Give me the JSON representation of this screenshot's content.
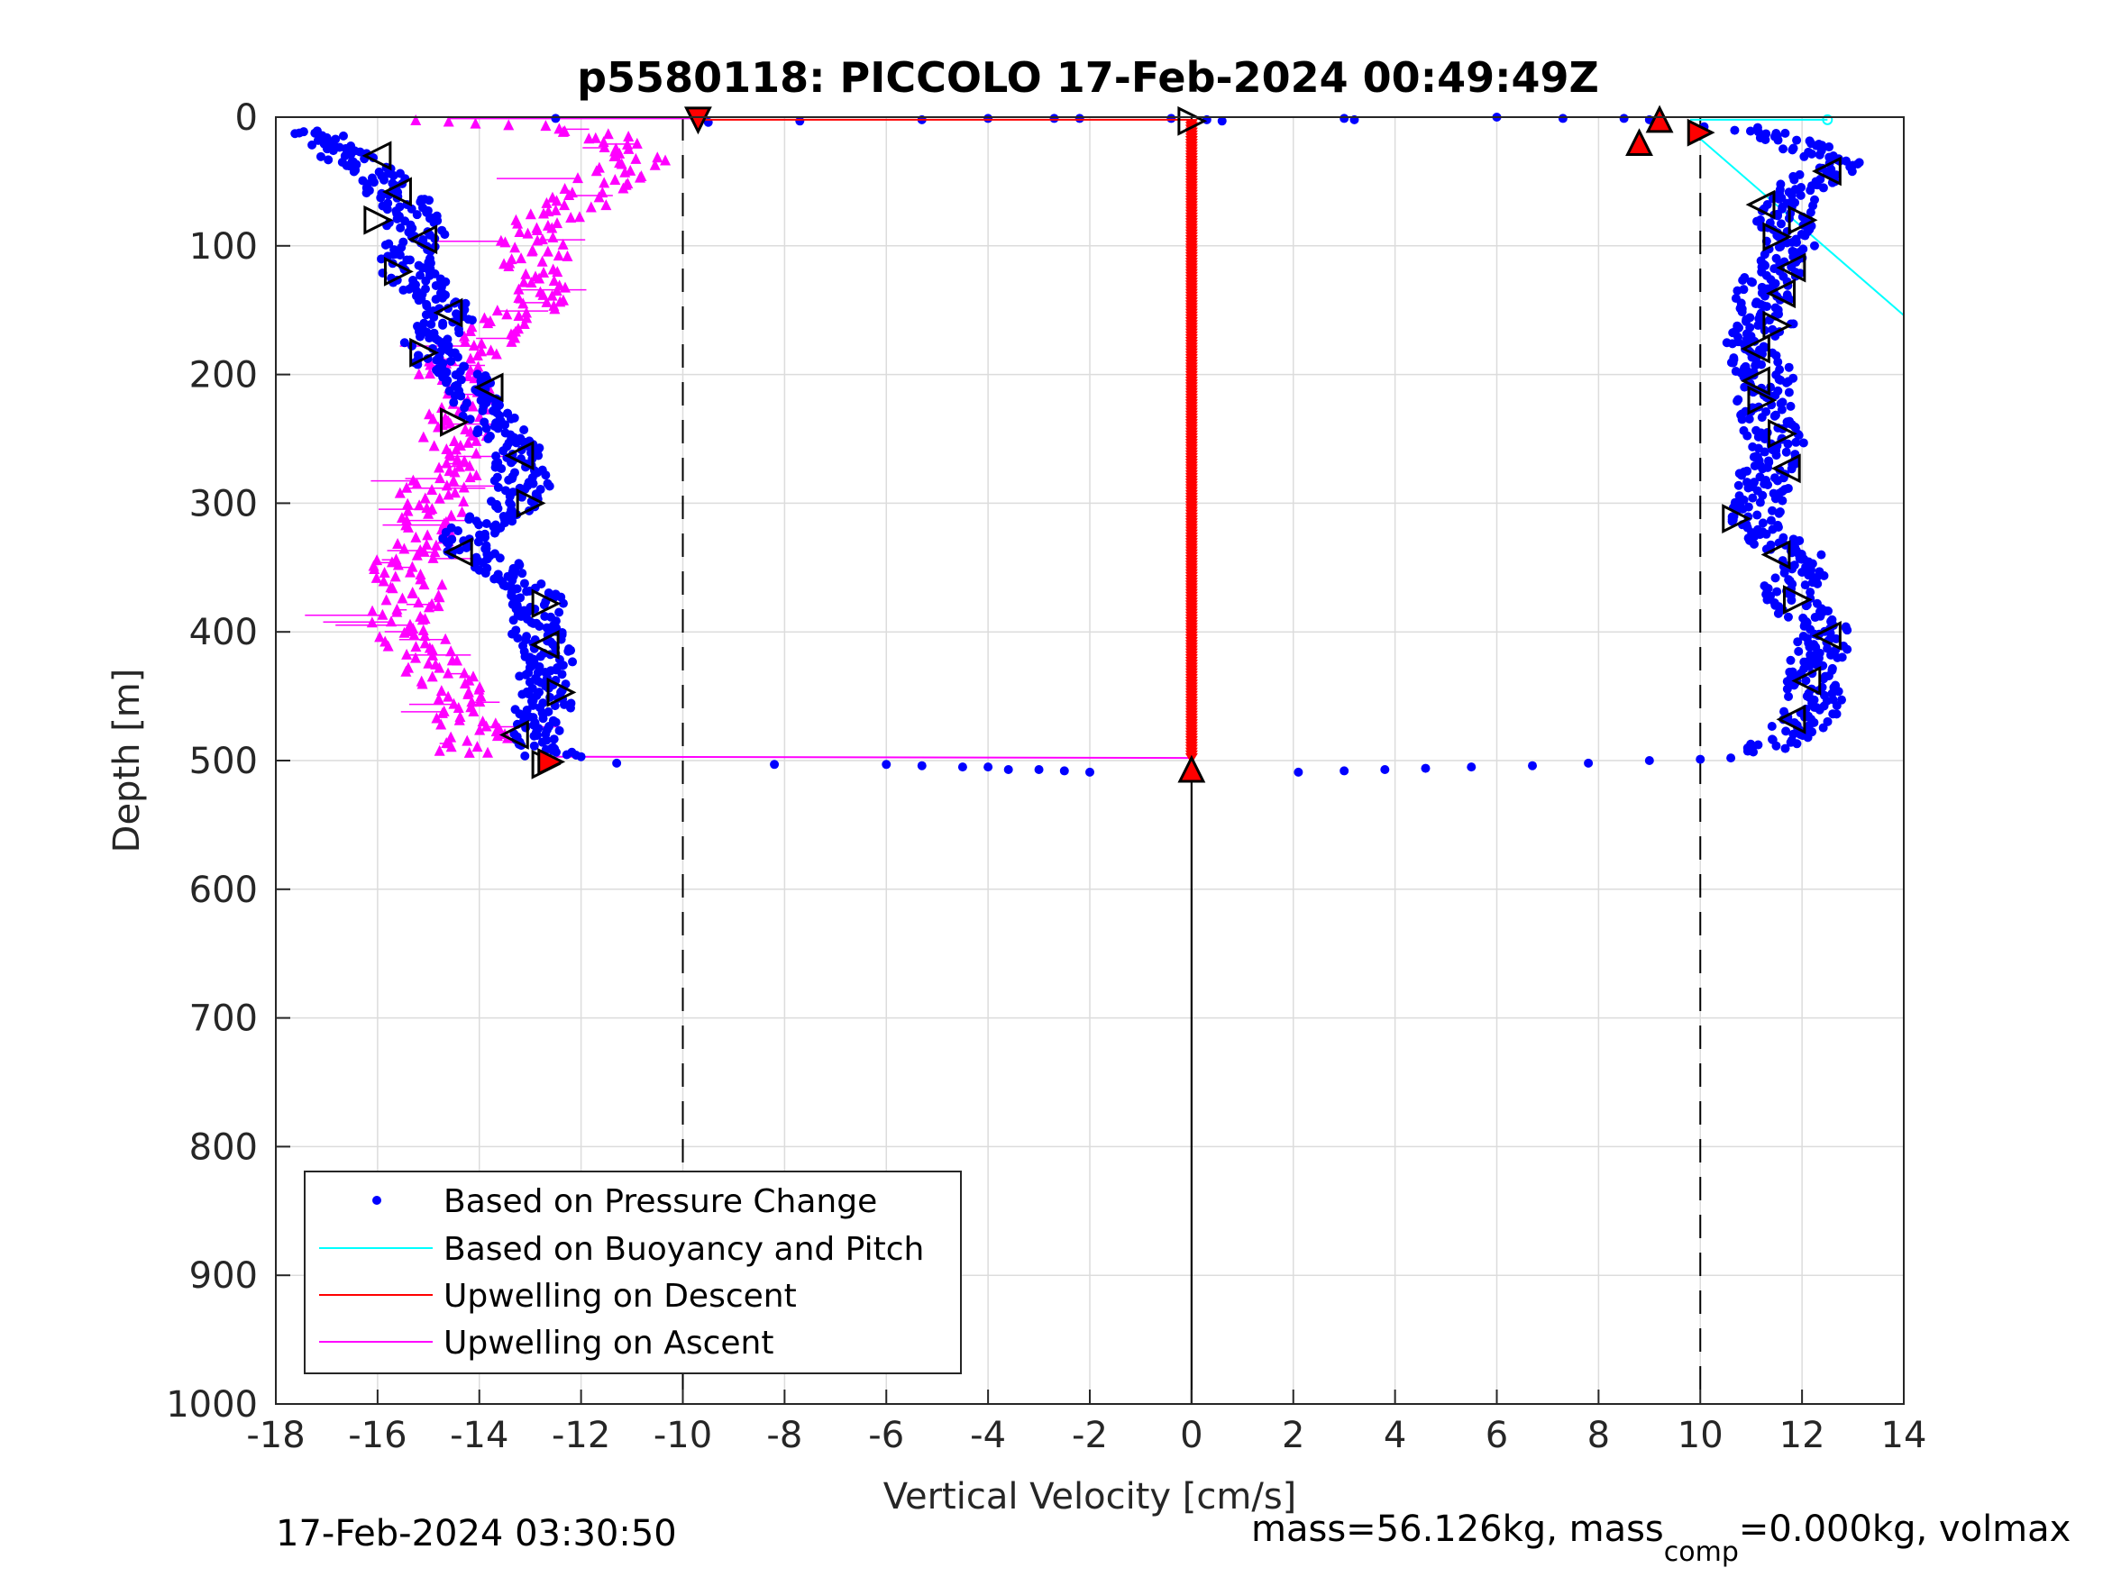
{
  "chart_data": {
    "type": "scatter",
    "title": "p5580118: PICCOLO 17-Feb-2024 00:49:49Z",
    "xlabel": "Vertical Velocity [cm/s]",
    "ylabel": "Depth [m]",
    "xlim": [
      -18,
      14
    ],
    "ylim": [
      0,
      1000
    ],
    "y_reversed": true,
    "x_ticks": [
      "-18",
      "-16",
      "-14",
      "-12",
      "-10",
      "-8",
      "-6",
      "-4",
      "-2",
      "0",
      "2",
      "4",
      "6",
      "8",
      "10",
      "12",
      "14"
    ],
    "y_ticks": [
      "0",
      "100",
      "200",
      "300",
      "400",
      "500",
      "600",
      "700",
      "800",
      "900",
      "1000"
    ],
    "grid": true,
    "legend_position": "bottom-left",
    "reference_lines": [
      {
        "kind": "vertical-dashed",
        "x": -10
      },
      {
        "kind": "vertical-dashed",
        "x": 10
      },
      {
        "kind": "vertical-solid",
        "x": 0
      }
    ],
    "series": [
      {
        "name": "Based on Pressure Change",
        "color": "#0000ff",
        "marker": "dot",
        "descent_profile": [
          [
            -17.2,
            10
          ],
          [
            -16.8,
            25
          ],
          [
            -16.2,
            40
          ],
          [
            -15.8,
            55
          ],
          [
            -15.5,
            65
          ],
          [
            -15.3,
            80
          ],
          [
            -15.2,
            95
          ],
          [
            -15.5,
            110
          ],
          [
            -15.3,
            125
          ],
          [
            -14.8,
            140
          ],
          [
            -14.6,
            155
          ],
          [
            -14.9,
            170
          ],
          [
            -15.0,
            185
          ],
          [
            -14.4,
            200
          ],
          [
            -14.2,
            215
          ],
          [
            -13.9,
            230
          ],
          [
            -13.5,
            245
          ],
          [
            -13.3,
            260
          ],
          [
            -13.2,
            275
          ],
          [
            -13.1,
            290
          ],
          [
            -13.4,
            305
          ],
          [
            -14.1,
            320
          ],
          [
            -14.3,
            335
          ],
          [
            -13.6,
            350
          ],
          [
            -13.0,
            365
          ],
          [
            -12.8,
            380
          ],
          [
            -12.9,
            395
          ],
          [
            -12.8,
            410
          ],
          [
            -12.6,
            425
          ],
          [
            -12.7,
            440
          ],
          [
            -12.7,
            455
          ],
          [
            -12.9,
            470
          ],
          [
            -13.0,
            480
          ],
          [
            -12.8,
            490
          ],
          [
            -12.6,
            497
          ]
        ],
        "ascent_profile": [
          [
            10.5,
            8
          ],
          [
            11.5,
            15
          ],
          [
            12.7,
            35
          ],
          [
            12.2,
            50
          ],
          [
            11.8,
            65
          ],
          [
            11.6,
            80
          ],
          [
            11.8,
            95
          ],
          [
            11.7,
            110
          ],
          [
            11.4,
            125
          ],
          [
            11.2,
            140
          ],
          [
            11.4,
            155
          ],
          [
            11.1,
            170
          ],
          [
            11.0,
            185
          ],
          [
            11.3,
            200
          ],
          [
            11.2,
            215
          ],
          [
            11.3,
            230
          ],
          [
            11.4,
            245
          ],
          [
            11.6,
            260
          ],
          [
            11.3,
            275
          ],
          [
            11.2,
            290
          ],
          [
            11.2,
            305
          ],
          [
            11.0,
            320
          ],
          [
            11.8,
            335
          ],
          [
            12.0,
            350
          ],
          [
            11.8,
            365
          ],
          [
            11.9,
            380
          ],
          [
            12.3,
            395
          ],
          [
            12.5,
            410
          ],
          [
            12.2,
            425
          ],
          [
            12.1,
            440
          ],
          [
            12.3,
            455
          ],
          [
            12.0,
            470
          ],
          [
            11.6,
            485
          ],
          [
            11.3,
            493
          ]
        ],
        "surface_transition": [
          [
            -12.5,
            1
          ],
          [
            -9.5,
            4
          ],
          [
            -7.7,
            3
          ],
          [
            -5.3,
            2
          ],
          [
            -4.0,
            1
          ],
          [
            -2.7,
            1
          ],
          [
            -2.2,
            1
          ],
          [
            -0.4,
            1
          ],
          [
            0.3,
            2
          ],
          [
            0.6,
            3
          ],
          [
            3.0,
            1
          ],
          [
            3.2,
            2
          ],
          [
            6.0,
            0
          ],
          [
            7.3,
            1
          ],
          [
            8.5,
            1
          ],
          [
            9.0,
            2
          ]
        ],
        "bottom_transition": [
          [
            -12.0,
            497
          ],
          [
            -11.3,
            502
          ],
          [
            -8.2,
            503
          ],
          [
            -6.0,
            503
          ],
          [
            -5.3,
            504
          ],
          [
            -4.5,
            505
          ],
          [
            -4.0,
            505
          ],
          [
            -3.6,
            507
          ],
          [
            -3.0,
            507
          ],
          [
            -2.5,
            508
          ],
          [
            -2.0,
            509
          ],
          [
            2.1,
            509
          ],
          [
            3.0,
            508
          ],
          [
            3.8,
            507
          ],
          [
            4.6,
            506
          ],
          [
            5.5,
            505
          ],
          [
            6.7,
            504
          ],
          [
            7.8,
            502
          ],
          [
            9.0,
            500
          ],
          [
            10.0,
            499
          ],
          [
            10.6,
            498
          ]
        ]
      },
      {
        "name": "Based on Buoyancy and Pitch",
        "color": "#00ffff",
        "marker": "line",
        "segments": [
          {
            "x": [
              9.8,
              12.5
            ],
            "y": [
              2,
              2
            ]
          },
          {
            "x": [
              9.8,
              14.0
            ],
            "y": [
              10,
              154
            ]
          }
        ]
      },
      {
        "name": "Upwelling on Descent",
        "color": "#ff0000",
        "marker": "line",
        "segments": [
          {
            "x": [
              -9.7,
              0
            ],
            "y": [
              2,
              2
            ]
          },
          {
            "x": [
              0,
              0
            ],
            "y": [
              5,
              498
            ]
          }
        ]
      },
      {
        "name": "Upwelling on Ascent",
        "color": "#ff00ff",
        "marker": "triangle",
        "profile": [
          [
            -14.6,
            2
          ],
          [
            -13.0,
            8
          ],
          [
            -11.8,
            12
          ],
          [
            -11.2,
            20
          ],
          [
            -10.9,
            35
          ],
          [
            -11.5,
            50
          ],
          [
            -12.0,
            65
          ],
          [
            -12.8,
            80
          ],
          [
            -13.0,
            95
          ],
          [
            -12.8,
            110
          ],
          [
            -13.0,
            125
          ],
          [
            -12.8,
            140
          ],
          [
            -13.3,
            155
          ],
          [
            -13.8,
            170
          ],
          [
            -14.3,
            185
          ],
          [
            -14.6,
            200
          ],
          [
            -14.2,
            215
          ],
          [
            -14.5,
            230
          ],
          [
            -14.4,
            245
          ],
          [
            -14.7,
            260
          ],
          [
            -14.5,
            275
          ],
          [
            -14.9,
            290
          ],
          [
            -15.0,
            305
          ],
          [
            -14.9,
            320
          ],
          [
            -15.4,
            335
          ],
          [
            -15.5,
            350
          ],
          [
            -15.3,
            365
          ],
          [
            -15.4,
            380
          ],
          [
            -15.6,
            395
          ],
          [
            -15.2,
            410
          ],
          [
            -15.0,
            425
          ],
          [
            -14.6,
            440
          ],
          [
            -14.4,
            455
          ],
          [
            -14.2,
            470
          ],
          [
            -14.0,
            485
          ],
          [
            -14.3,
            495
          ]
        ],
        "bottom_connector": {
          "x": [
            -12.5,
            0
          ],
          "y": [
            497,
            498
          ]
        }
      }
    ],
    "open_triangle_markers": [
      {
        "x": -16.0,
        "y": 30,
        "dir": "left"
      },
      {
        "x": -15.6,
        "y": 58,
        "dir": "left"
      },
      {
        "x": -16.0,
        "y": 80,
        "dir": "right"
      },
      {
        "x": -15.1,
        "y": 95,
        "dir": "left"
      },
      {
        "x": -15.6,
        "y": 120,
        "dir": "right"
      },
      {
        "x": -14.6,
        "y": 152,
        "dir": "left"
      },
      {
        "x": -15.1,
        "y": 183,
        "dir": "right"
      },
      {
        "x": -13.8,
        "y": 210,
        "dir": "left"
      },
      {
        "x": -14.5,
        "y": 237,
        "dir": "right"
      },
      {
        "x": -13.2,
        "y": 263,
        "dir": "left"
      },
      {
        "x": -13.0,
        "y": 300,
        "dir": "right"
      },
      {
        "x": -14.4,
        "y": 338,
        "dir": "left"
      },
      {
        "x": -12.7,
        "y": 378,
        "dir": "right"
      },
      {
        "x": -12.7,
        "y": 410,
        "dir": "left"
      },
      {
        "x": -12.4,
        "y": 447,
        "dir": "right"
      },
      {
        "x": -13.3,
        "y": 480,
        "dir": "left"
      },
      {
        "x": -12.7,
        "y": 503,
        "dir": "right"
      },
      {
        "x": 12.5,
        "y": 42,
        "dir": "left"
      },
      {
        "x": 11.2,
        "y": 68,
        "dir": "left"
      },
      {
        "x": 12.0,
        "y": 80,
        "dir": "right"
      },
      {
        "x": 11.5,
        "y": 93,
        "dir": "right"
      },
      {
        "x": 11.8,
        "y": 117,
        "dir": "left"
      },
      {
        "x": 11.6,
        "y": 137,
        "dir": "left"
      },
      {
        "x": 11.5,
        "y": 162,
        "dir": "right"
      },
      {
        "x": 11.1,
        "y": 180,
        "dir": "left"
      },
      {
        "x": 11.1,
        "y": 205,
        "dir": "left"
      },
      {
        "x": 11.2,
        "y": 220,
        "dir": "right"
      },
      {
        "x": 11.6,
        "y": 246,
        "dir": "right"
      },
      {
        "x": 11.7,
        "y": 273,
        "dir": "left"
      },
      {
        "x": 10.7,
        "y": 312,
        "dir": "right"
      },
      {
        "x": 11.5,
        "y": 340,
        "dir": "left"
      },
      {
        "x": 11.9,
        "y": 375,
        "dir": "right"
      },
      {
        "x": 12.5,
        "y": 403,
        "dir": "left"
      },
      {
        "x": 12.1,
        "y": 438,
        "dir": "left"
      },
      {
        "x": 11.8,
        "y": 468,
        "dir": "left"
      },
      {
        "x": 0.0,
        "y": 3,
        "dir": "right"
      }
    ],
    "red_markers": [
      {
        "x": 9.2,
        "y": 2,
        "shape": "triangle-up"
      },
      {
        "x": 8.8,
        "y": 20,
        "shape": "triangle-up"
      },
      {
        "x": 10.0,
        "y": 12,
        "shape": "triangle-right"
      },
      {
        "x": -12.6,
        "y": 501,
        "shape": "triangle-right"
      },
      {
        "x": 0.0,
        "y": 507,
        "shape": "triangle-up"
      },
      {
        "x": -9.7,
        "y": 2,
        "shape": "triangle-down"
      }
    ],
    "footer_left": "17-Feb-2024 03:30:50",
    "footer_right": {
      "part1": "mass=56.126kg, mass",
      "subscript": "comp",
      "part2": "=0.000kg, volmax"
    }
  }
}
